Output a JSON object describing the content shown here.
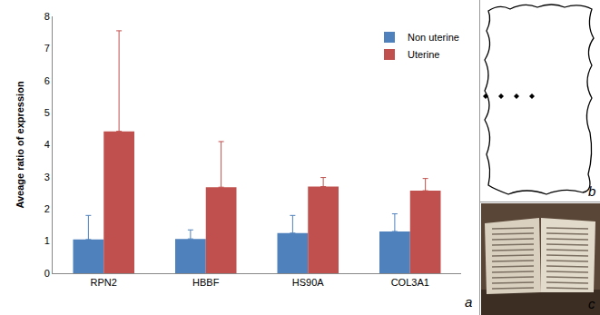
{
  "chart_data": {
    "type": "bar",
    "y_label": "Aveage ratio of expression",
    "categories": [
      "RPN2",
      "HBBF",
      "HS90A",
      "COL3A1"
    ],
    "series": [
      {
        "name": "Non uterine",
        "color": "#4f81bd",
        "values": [
          1.05,
          1.07,
          1.25,
          1.3
        ],
        "errors": [
          0.75,
          0.28,
          0.55,
          0.55
        ]
      },
      {
        "name": "Uterine",
        "color": "#c0504d",
        "values": [
          4.42,
          2.68,
          2.7,
          2.57
        ],
        "errors": [
          3.13,
          1.42,
          0.28,
          0.38
        ]
      }
    ],
    "ylim": [
      0,
      8
    ],
    "yticks": [
      0,
      1,
      2,
      3,
      4,
      5,
      6,
      7,
      8
    ],
    "grid": false,
    "legend": "upper right"
  },
  "panel_labels": [
    "a",
    "b",
    "c"
  ]
}
